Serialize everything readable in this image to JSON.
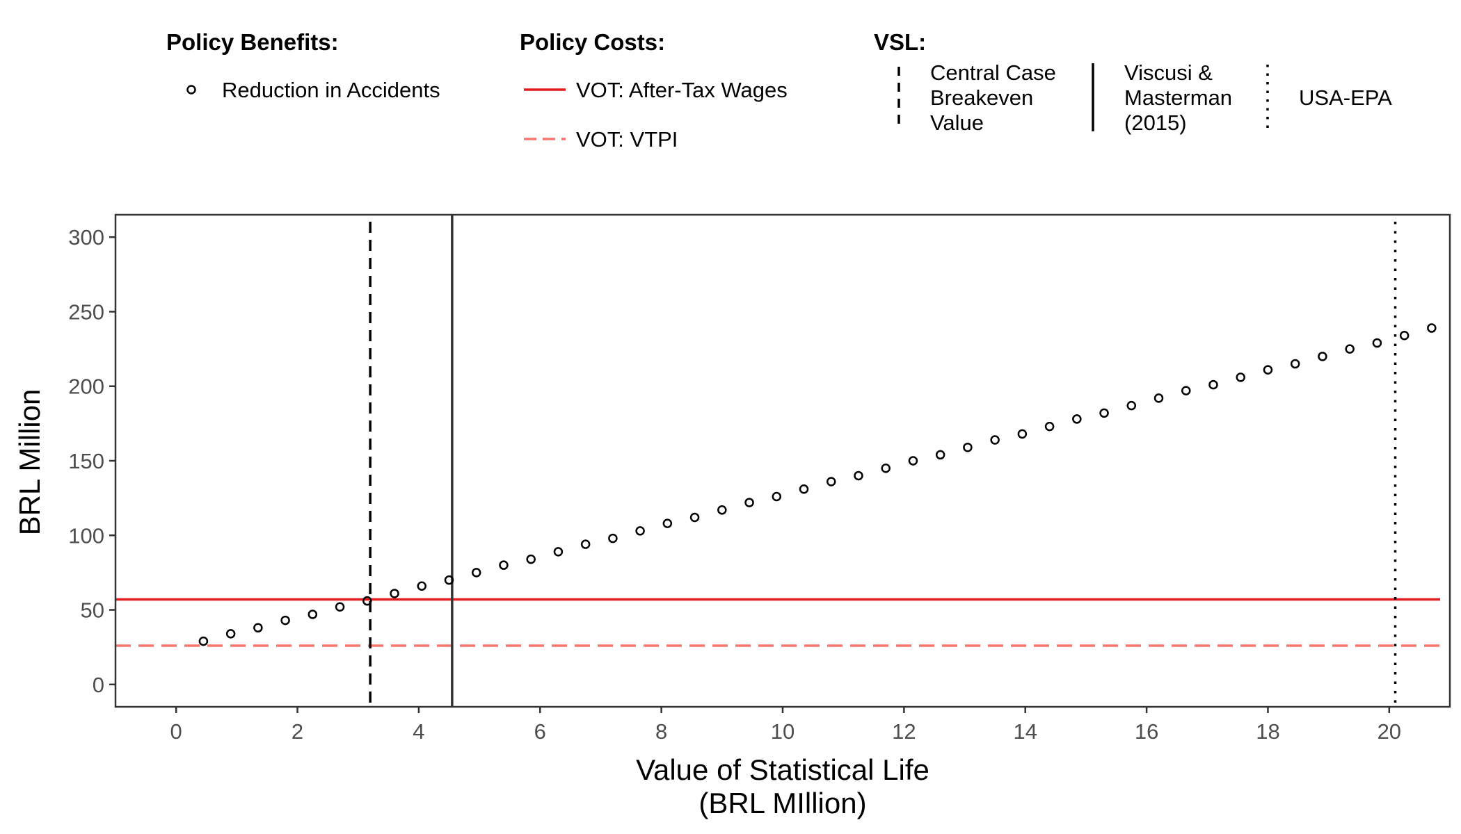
{
  "chart_data": {
    "type": "scatter",
    "xlabel": "Value of Statistical Life",
    "xlabel_line2": "(BRL MIllion)",
    "ylabel": "BRL Million",
    "xlim": [
      -1,
      21
    ],
    "ylim": [
      -15,
      315
    ],
    "x_ticks": [
      0,
      2,
      4,
      6,
      8,
      10,
      12,
      14,
      16,
      18,
      20
    ],
    "y_ticks": [
      0,
      50,
      100,
      150,
      200,
      250,
      300
    ],
    "grid": false,
    "legend_position": "top",
    "legend": {
      "benefits": {
        "title": "Policy Benefits:",
        "entries": [
          "Reduction in Accidents"
        ]
      },
      "costs": {
        "title": "Policy Costs:",
        "entries": [
          "VOT: After-Tax Wages",
          "VOT: VTPI"
        ]
      },
      "vsl": {
        "title": "VSL:",
        "entries": [
          {
            "lines": [
              "Central Case",
              "Breakeven",
              "Value"
            ],
            "style": "dashed"
          },
          {
            "lines": [
              "Viscusi &",
              "Masterman",
              "(2015)"
            ],
            "style": "solid"
          },
          {
            "lines": [
              "USA-EPA"
            ],
            "style": "dotted"
          }
        ]
      }
    },
    "series": [
      {
        "name": "Reduction in Accidents",
        "marker": "open-circle",
        "x": [
          0.45,
          0.9,
          1.35,
          1.8,
          2.25,
          2.7,
          3.15,
          3.6,
          4.05,
          4.5,
          4.95,
          5.4,
          5.85,
          6.3,
          6.75,
          7.2,
          7.65,
          8.1,
          8.55,
          9.0,
          9.45,
          9.9,
          10.35,
          10.8,
          11.25,
          11.7,
          12.15,
          12.6,
          13.05,
          13.5,
          13.95,
          14.4,
          14.85,
          15.3,
          15.75,
          16.2,
          16.65,
          17.1,
          17.55,
          18.0,
          18.45,
          18.9,
          19.35,
          19.8,
          20.25,
          20.7
        ],
        "y": [
          29,
          34,
          38,
          43,
          47,
          52,
          56,
          61,
          66,
          70,
          75,
          80,
          84,
          89,
          94,
          98,
          103,
          108,
          112,
          117,
          122,
          126,
          131,
          136,
          140,
          145,
          150,
          154,
          159,
          164,
          168,
          173,
          178,
          182,
          187,
          192,
          197,
          201,
          206,
          211,
          215,
          220,
          225,
          229,
          234,
          239
        ]
      }
    ],
    "hlines": [
      {
        "name": "VOT: After-Tax Wages",
        "y": 57,
        "color": "#e41a1c",
        "style": "solid"
      },
      {
        "name": "VOT: VTPI",
        "y": 26,
        "color": "#f8766d",
        "style": "dashed"
      }
    ],
    "vlines": [
      {
        "name": "Central Case Breakeven Value",
        "x": 3.2,
        "color": "#000000",
        "style": "dashed"
      },
      {
        "name": "Viscusi & Masterman (2015)",
        "x": 4.55,
        "color": "#333333",
        "style": "solid"
      },
      {
        "name": "USA-EPA",
        "x": 20.1,
        "color": "#000000",
        "style": "dotted"
      }
    ]
  }
}
